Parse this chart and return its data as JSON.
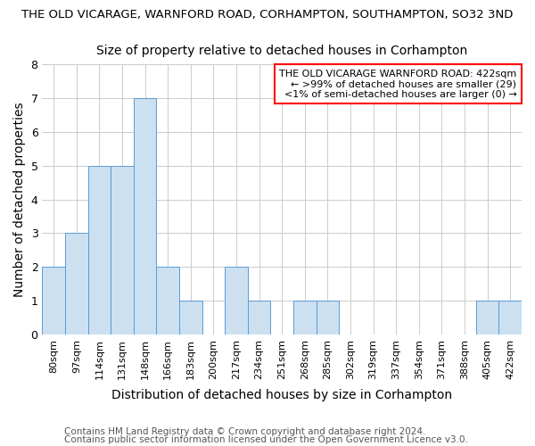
{
  "title_line1": "THE OLD VICARAGE, WARNFORD ROAD, CORHAMPTON, SOUTHAMPTON, SO32 3ND",
  "title_line2": "Size of property relative to detached houses in Corhampton",
  "xlabel": "Distribution of detached houses by size in Corhampton",
  "ylabel": "Number of detached properties",
  "categories": [
    "80sqm",
    "97sqm",
    "114sqm",
    "131sqm",
    "148sqm",
    "166sqm",
    "183sqm",
    "200sqm",
    "217sqm",
    "234sqm",
    "251sqm",
    "268sqm",
    "285sqm",
    "302sqm",
    "319sqm",
    "337sqm",
    "354sqm",
    "371sqm",
    "388sqm",
    "405sqm",
    "422sqm"
  ],
  "values": [
    2,
    3,
    5,
    5,
    7,
    2,
    1,
    0,
    2,
    1,
    0,
    1,
    1,
    0,
    0,
    0,
    0,
    0,
    0,
    1,
    1
  ],
  "bar_color": "#cce0f0",
  "bar_edge_color": "#5b9bd5",
  "annotation_title": "THE OLD VICARAGE WARNFORD ROAD: 422sqm",
  "annotation_line1": "← >99% of detached houses are smaller (29)",
  "annotation_line2": "<1% of semi-detached houses are larger (0) →",
  "ylim": [
    0,
    8
  ],
  "yticks": [
    0,
    1,
    2,
    3,
    4,
    5,
    6,
    7,
    8
  ],
  "grid_color": "#cccccc",
  "footer_line1": "Contains HM Land Registry data © Crown copyright and database right 2024.",
  "footer_line2": "Contains public sector information licensed under the Open Government Licence v3.0.",
  "background_color": "#ffffff",
  "title_fontsize": 9.5,
  "subtitle_fontsize": 10,
  "axis_label_fontsize": 10,
  "tick_fontsize": 8,
  "footer_fontsize": 7.5
}
